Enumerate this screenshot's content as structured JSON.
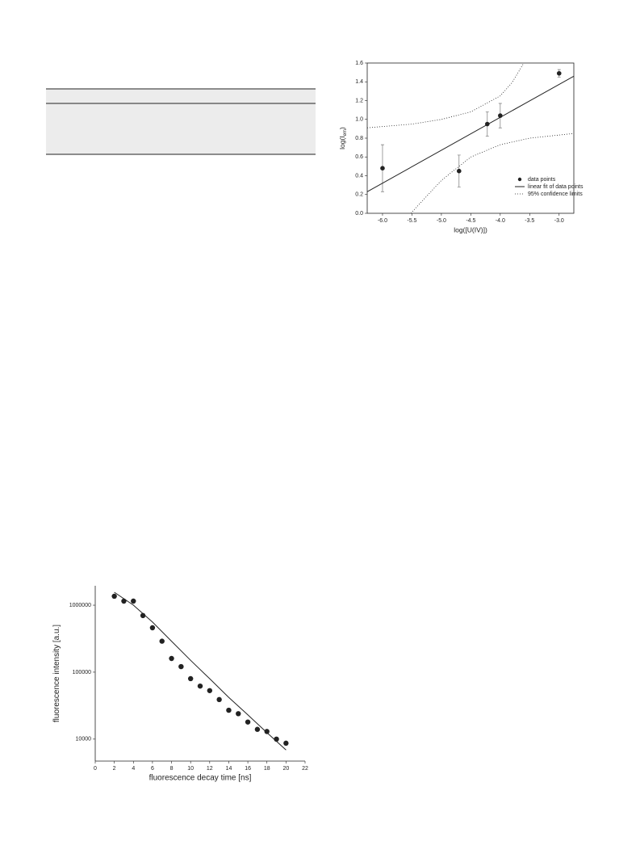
{
  "chart_data": [
    {
      "type": "scatter-fit",
      "x_label": "log([U(IV)])",
      "y_label": {
        "main": "log(I",
        "sub": "em",
        "end": ")"
      },
      "xlim": [
        -6.26,
        -2.75
      ],
      "xticks": [
        {
          "value": -6.0,
          "label": "-6.0"
        },
        -5.5,
        {
          "value": -5.0,
          "label": "-5.0"
        },
        -4.5,
        {
          "value": -4.0,
          "label": "-4.0"
        },
        -3.5,
        {
          "value": -3.0,
          "label": "-3.0"
        }
      ],
      "ylim": [
        0,
        1.6
      ],
      "yticks": [
        {
          "value": 0,
          "label": "0.0"
        },
        0.2,
        0.4,
        0.6,
        0.8,
        {
          "value": 1,
          "label": "1.0"
        },
        1.2,
        1.4,
        1.6
      ],
      "legend": "lower right",
      "series": [
        {
          "name": "data points",
          "kind": "points",
          "color": "#222222",
          "x": [
            -6.0,
            -4.7,
            -4.22,
            -4.0,
            -3.0
          ],
          "values": [
            0.48,
            0.45,
            0.95,
            1.04,
            1.49
          ],
          "errors": [
            0.25,
            0.17,
            0.13,
            0.13,
            0.04
          ]
        },
        {
          "name": "linear fit of data points",
          "kind": "line",
          "color": "#222222",
          "x": [
            -6.26,
            -2.75
          ],
          "values": [
            0.23,
            1.46
          ]
        },
        {
          "name": "95% confidence limits",
          "kind": "dotted",
          "color": "#222222",
          "lines": [
            {
              "x": [
                -6.26,
                -5.5,
                -5.0,
                -4.5,
                -4.0,
                -3.8,
                -3.6
              ],
              "values": [
                0.91,
                0.95,
                1.0,
                1.08,
                1.25,
                1.39,
                1.6
              ]
            },
            {
              "x": [
                -5.52,
                -5.0,
                -4.5,
                -4.0,
                -3.5,
                -2.75
              ],
              "values": [
                0,
                0.35,
                0.6,
                0.73,
                0.8,
                0.85
              ]
            }
          ]
        }
      ]
    },
    {
      "type": "scatter-fit",
      "x_label": "fluorescence decay time [ns]",
      "y_label": {
        "main": "fluorescence intensity [a.u.]"
      },
      "xlim": [
        0,
        22
      ],
      "xticks": [
        0,
        2,
        4,
        6,
        8,
        10,
        12,
        14,
        16,
        18,
        20,
        22
      ],
      "ylim": [
        4700,
        1950000
      ],
      "log_y": true,
      "yticks": [
        10000,
        100000,
        1000000
      ],
      "series": [
        {
          "kind": "points",
          "color": "#222222",
          "x": [
            2,
            3,
            4,
            5,
            6,
            7,
            8,
            9,
            10,
            11,
            12,
            13,
            14,
            15,
            16,
            17,
            18,
            19,
            20
          ],
          "values": [
            1360000,
            1150000,
            1150000,
            700000,
            460000,
            290000,
            160000,
            121000,
            80000,
            62000,
            53000,
            39000,
            27000,
            24000,
            18000,
            14000,
            13000,
            10000,
            8700
          ]
        },
        {
          "kind": "line",
          "color": "#222222",
          "x": [
            2,
            4,
            6,
            8,
            10,
            12,
            14,
            16,
            18,
            20
          ],
          "values": [
            1560000,
            1000000,
            560000,
            290000,
            150000,
            80000,
            42000,
            23000,
            12500,
            6900
          ]
        }
      ]
    }
  ]
}
